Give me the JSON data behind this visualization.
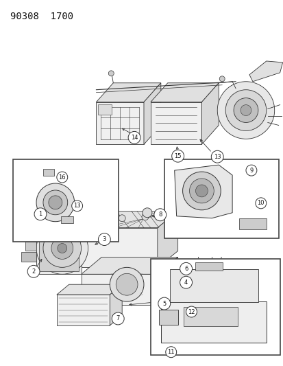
{
  "title_code": "90308  1700",
  "background_color": "#ffffff",
  "fig_width": 4.14,
  "fig_height": 5.33,
  "dpi": 100,
  "title_fontsize": 10,
  "title_color": "#111111",
  "line_color": "#333333",
  "label_fontsize": 6.0,
  "label_circle_r": 0.018,
  "label_bg": "white",
  "label_edge": "#222222"
}
